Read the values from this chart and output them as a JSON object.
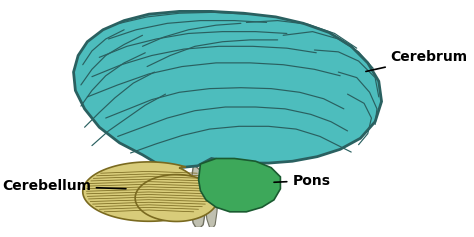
{
  "background_color": "#ffffff",
  "cerebrum_color": "#4dbdbd",
  "cerebrum_outline": "#2a6060",
  "cerebellum_color": "#d8cc7a",
  "cerebellum_outline": "#7a6a20",
  "pons_color": "#3da85a",
  "pons_outline": "#1a5a30",
  "brainstem_color": "#c0c0b0",
  "brainstem_outline": "#707060",
  "label_cerebrum": "Cerebrum",
  "label_cerebellum": "Cerebellum",
  "label_pons": "Pons",
  "label_fontsize": 10,
  "label_fontweight": "bold",
  "figsize": [
    4.74,
    2.37
  ],
  "dpi": 100
}
